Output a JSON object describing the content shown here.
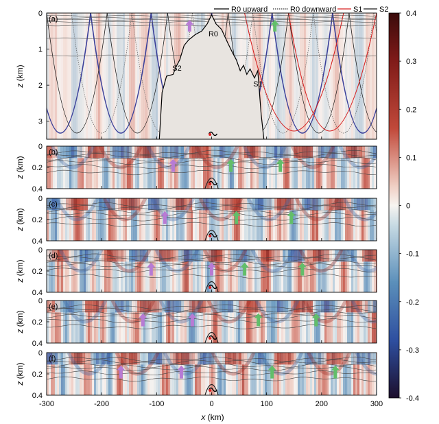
{
  "chart_data": {
    "type": "heatmap",
    "xlabel_var": "x",
    "xlabel_unit": "(km)",
    "ylabel_var": "z",
    "ylabel_unit": "(km)",
    "xlim": [
      -300,
      300
    ],
    "x_ticks": [
      -300,
      -200,
      -100,
      0,
      100,
      200,
      300
    ],
    "colorbar": {
      "range": [
        -0.4,
        0.4
      ],
      "ticks": [
        "0.4",
        "0.3",
        "0.2",
        "0.1",
        "0",
        "-0.1",
        "-0.2",
        "-0.3",
        "-0.4"
      ]
    },
    "legend": {
      "position": "top-right",
      "entries": [
        {
          "label": "R0 upward",
          "style": "solid",
          "color": "#000000"
        },
        {
          "label": "R0 downward",
          "style": "dotted",
          "color": "#000000"
        },
        {
          "label": "S1",
          "style": "solid",
          "color": "#d62020"
        },
        {
          "label": "S2",
          "style": "solid",
          "color": "#1a1a1a"
        }
      ]
    },
    "panels": [
      {
        "label": "(a)",
        "ylim": [
          0,
          3.5
        ],
        "y_ticks": [
          "0",
          "1",
          "2",
          "3"
        ],
        "annotations": [
          {
            "text": "R0",
            "x": 0,
            "z": 0.45
          },
          {
            "text": "S2",
            "x": -55,
            "z": 1.22
          },
          {
            "text": "S1",
            "x": 70,
            "z": 1.9
          }
        ],
        "topography": [
          [
            -300,
            3.5
          ],
          [
            -95,
            3.5
          ],
          [
            -90,
            2.2
          ],
          [
            -82,
            1.75
          ],
          [
            -70,
            1.7
          ],
          [
            -65,
            1.5
          ],
          [
            -58,
            1.3
          ],
          [
            -50,
            0.9
          ],
          [
            -42,
            0.75
          ],
          [
            -30,
            0.6
          ],
          [
            -18,
            0.5
          ],
          [
            -8,
            0.3
          ],
          [
            0,
            0.05
          ],
          [
            8,
            0.3
          ],
          [
            18,
            0.45
          ],
          [
            30,
            0.85
          ],
          [
            38,
            1.1
          ],
          [
            45,
            1.3
          ],
          [
            52,
            1.6
          ],
          [
            58,
            1.45
          ],
          [
            64,
            1.7
          ],
          [
            70,
            1.55
          ],
          [
            78,
            1.8
          ],
          [
            84,
            1.6
          ],
          [
            90,
            2.8
          ],
          [
            95,
            3.5
          ],
          [
            300,
            3.5
          ]
        ],
        "arrows": [
          {
            "x": -40,
            "color": "purple"
          },
          {
            "x": 115,
            "color": "green"
          }
        ]
      },
      {
        "label": "(b)",
        "ylim": [
          0,
          0.4
        ],
        "y_ticks": [
          "0",
          "0.2",
          "0.4"
        ],
        "arrows": [
          {
            "x": -70,
            "color": "purple"
          },
          {
            "x": 35,
            "color": "green"
          },
          {
            "x": 125,
            "color": "green"
          }
        ]
      },
      {
        "label": "(c)",
        "ylim": [
          0,
          0.4
        ],
        "y_ticks": [
          "0",
          "0.2",
          "0.4"
        ],
        "arrows": [
          {
            "x": -85,
            "color": "purple"
          },
          {
            "x": 45,
            "color": "green"
          },
          {
            "x": 145,
            "color": "green"
          }
        ]
      },
      {
        "label": "(d)",
        "ylim": [
          0,
          0.4
        ],
        "y_ticks": [
          "0",
          "0.2",
          "0.4"
        ],
        "arrows": [
          {
            "x": -110,
            "color": "purple"
          },
          {
            "x": 0,
            "color": "purple"
          },
          {
            "x": 60,
            "color": "green"
          },
          {
            "x": 165,
            "color": "green"
          }
        ]
      },
      {
        "label": "(e)",
        "ylim": [
          0,
          0.4
        ],
        "y_ticks": [
          "0",
          "0.2",
          "0.4"
        ],
        "arrows": [
          {
            "x": -125,
            "color": "purple"
          },
          {
            "x": -35,
            "color": "purple"
          },
          {
            "x": 85,
            "color": "green"
          },
          {
            "x": 190,
            "color": "green"
          }
        ]
      },
      {
        "label": "(f)",
        "ylim": [
          0,
          0.4
        ],
        "y_ticks": [
          "0",
          "0.2",
          "0.4"
        ],
        "arrows": [
          {
            "x": -165,
            "color": "purple"
          },
          {
            "x": -55,
            "color": "purple"
          },
          {
            "x": 110,
            "color": "green"
          },
          {
            "x": 225,
            "color": "green"
          }
        ]
      }
    ],
    "colors": {
      "purple_arrow": "#b77bd4",
      "green_arrow": "#62be6a",
      "topography_fill": "#e8e4e0",
      "s1_red": "#d62020",
      "s2_blue": "#3a3f9a"
    }
  }
}
